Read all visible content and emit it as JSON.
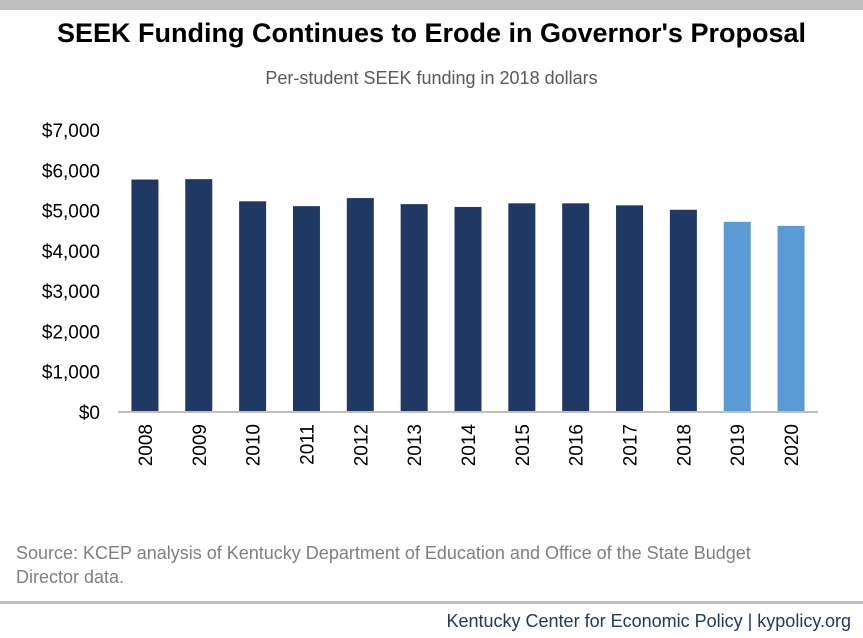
{
  "header": {
    "title": "SEEK Funding Continues to Erode in Governor's Proposal",
    "subtitle": "Per-student SEEK funding in 2018 dollars"
  },
  "chart_data": {
    "type": "bar",
    "title": "SEEK Funding Continues to Erode in Governor's Proposal",
    "subtitle": "Per-student SEEK funding in 2018 dollars",
    "xlabel": "",
    "ylabel": "",
    "categories": [
      "2008",
      "2009",
      "2010",
      "2011",
      "2012",
      "2013",
      "2014",
      "2015",
      "2016",
      "2017",
      "2018",
      "2019",
      "2020"
    ],
    "values": [
      5770,
      5780,
      5230,
      5110,
      5310,
      5160,
      5090,
      5180,
      5180,
      5130,
      5020,
      4720,
      4620
    ],
    "ylim": [
      0,
      7000
    ],
    "yticks": [
      0,
      1000,
      2000,
      3000,
      4000,
      5000,
      6000,
      7000
    ],
    "ytick_labels": [
      "$0",
      "$1,000",
      "$2,000",
      "$3,000",
      "$4,000",
      "$5,000",
      "$6,000",
      "$7,000"
    ],
    "grid": false,
    "legend": "none",
    "colors": {
      "actual": "#1f3864",
      "proposed": "#5b9bd5",
      "axis": "#bfbfbf"
    },
    "proposed_categories": [
      "2019",
      "2020"
    ]
  },
  "source_note": "Source: KCEP analysis of Kentucky Department of Education and Office of the State Budget Director data.",
  "footer": {
    "text": "Kentucky Center for Economic Policy | kypolicy.org"
  }
}
